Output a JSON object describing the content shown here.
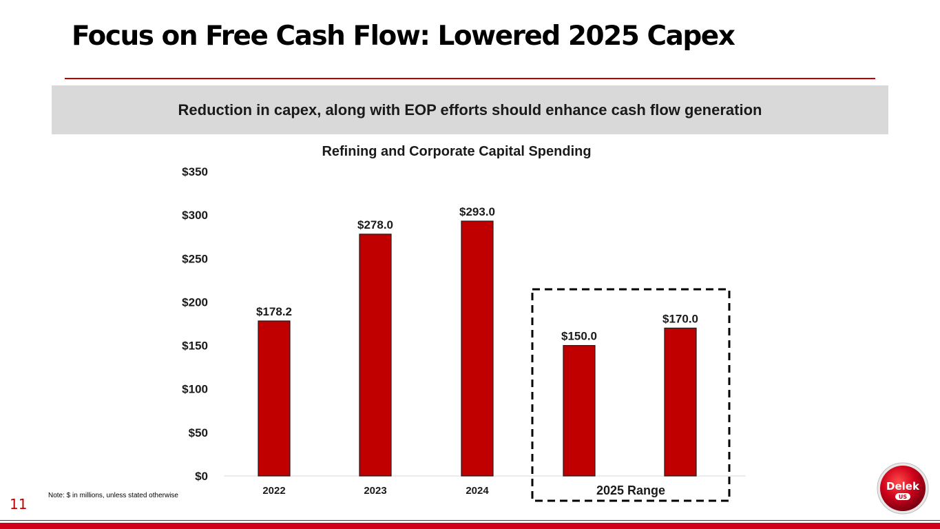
{
  "slide": {
    "title": "Focus on Free Cash Flow: Lowered 2025 Capex",
    "banner": "Reduction in capex, along with EOP efforts should enhance cash flow generation",
    "note": "Note: $ in millions, unless stated otherwise",
    "page_number": "11",
    "logo_text": "Delek",
    "logo_subtext": "US"
  },
  "colors": {
    "accent": "#c00000",
    "bar": "#c00000",
    "banner_bg": "#d9d9d9"
  },
  "chart_data": {
    "type": "bar",
    "title": "Refining and Corporate Capital Spending",
    "categories": [
      "2022",
      "2023",
      "2024",
      "",
      ""
    ],
    "values": [
      178.2,
      278.0,
      293.0,
      150.0,
      170.0
    ],
    "data_labels": [
      "$178.2",
      "$278.0",
      "$293.0",
      "$150.0",
      "$170.0"
    ],
    "group_label": "2025 Range",
    "group_indices": [
      3,
      4
    ],
    "ylim": [
      0,
      350
    ],
    "yticks": [
      0,
      50,
      100,
      150,
      200,
      250,
      300,
      350
    ],
    "ytick_labels": [
      "$0",
      "$50",
      "$100",
      "$150",
      "$200",
      "$250",
      "$300",
      "$350"
    ],
    "xlabel": "",
    "ylabel": "",
    "grid": false,
    "legend": "none"
  }
}
